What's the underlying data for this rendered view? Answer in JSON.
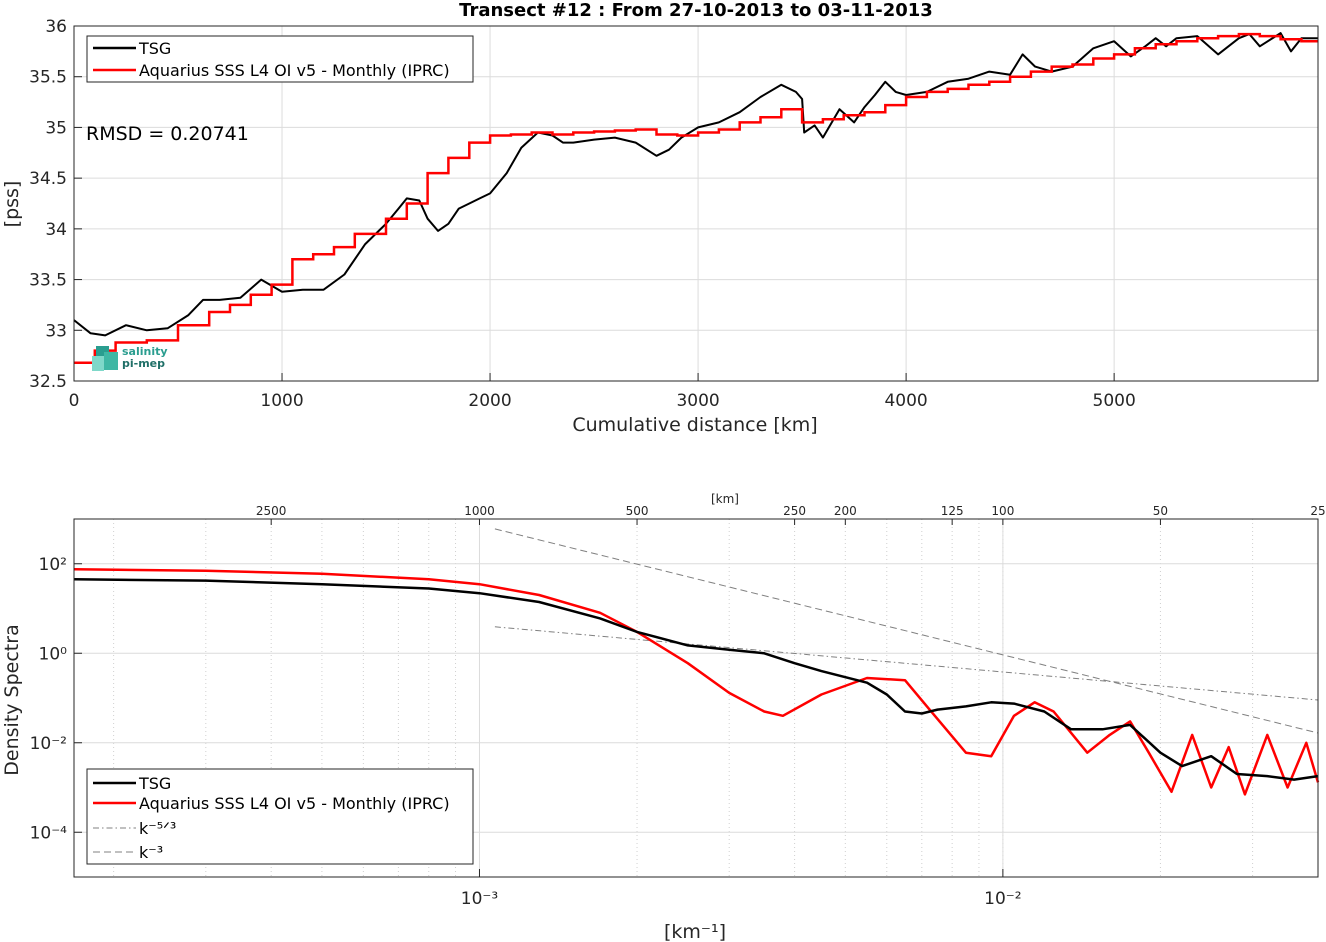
{
  "colors": {
    "tsg": "#000000",
    "aquarius": "#ff0000",
    "ref": "#808080",
    "grid": "#dcdcdc"
  },
  "logo": {
    "line1": "salinity",
    "line2": "pi-mep"
  },
  "chart_data": [
    {
      "type": "line",
      "title": "Transect #12 : From 27-10-2013 to 03-11-2013",
      "xlabel": "Cumulative distance [km]",
      "ylabel": "[pss]",
      "xlim": [
        0,
        5980
      ],
      "ylim": [
        32.5,
        36
      ],
      "xticks": [
        0,
        1000,
        2000,
        3000,
        4000,
        5000
      ],
      "xtick_labels": [
        "0",
        "1000",
        "2000",
        "3000",
        "4000",
        "5000"
      ],
      "yticks": [
        32.5,
        33,
        33.5,
        34,
        34.5,
        35,
        35.5,
        36
      ],
      "ytick_labels": [
        "32.5",
        "33",
        "33.5",
        "34",
        "34.5",
        "35",
        "35.5",
        "36"
      ],
      "grid": true,
      "legend": "top-left",
      "annotation": "RMSD = 0.20741",
      "series": [
        {
          "name": "TSG",
          "kind": "line",
          "x": [
            0,
            80,
            150,
            250,
            350,
            450,
            550,
            620,
            700,
            800,
            900,
            1000,
            1100,
            1200,
            1300,
            1400,
            1500,
            1560,
            1600,
            1660,
            1700,
            1750,
            1800,
            1850,
            1900,
            1950,
            2000,
            2080,
            2150,
            2230,
            2300,
            2350,
            2400,
            2500,
            2600,
            2700,
            2800,
            2860,
            2920,
            3000,
            3100,
            3200,
            3300,
            3400,
            3470,
            3500,
            3510,
            3560,
            3600,
            3680,
            3750,
            3800,
            3850,
            3900,
            3950,
            4000,
            4100,
            4200,
            4300,
            4400,
            4500,
            4560,
            4620,
            4700,
            4800,
            4900,
            5000,
            5080,
            5150,
            5200,
            5250,
            5300,
            5400,
            5500,
            5600,
            5650,
            5700,
            5800,
            5850,
            5900,
            5980
          ],
          "y": [
            33.1,
            32.97,
            32.95,
            33.05,
            33.0,
            33.02,
            33.15,
            33.3,
            33.3,
            33.32,
            33.5,
            33.38,
            33.4,
            33.4,
            33.55,
            33.85,
            34.05,
            34.2,
            34.3,
            34.28,
            34.1,
            33.98,
            34.05,
            34.2,
            34.25,
            34.3,
            34.35,
            34.55,
            34.8,
            34.95,
            34.92,
            34.85,
            34.85,
            34.88,
            34.9,
            34.85,
            34.72,
            34.78,
            34.9,
            35.0,
            35.05,
            35.15,
            35.3,
            35.42,
            35.35,
            35.28,
            34.95,
            35.02,
            34.9,
            35.18,
            35.05,
            35.2,
            35.32,
            35.45,
            35.35,
            35.32,
            35.35,
            35.45,
            35.48,
            35.55,
            35.52,
            35.72,
            35.6,
            35.55,
            35.6,
            35.78,
            35.85,
            35.7,
            35.8,
            35.88,
            35.8,
            35.88,
            35.9,
            35.72,
            35.88,
            35.92,
            35.8,
            35.93,
            35.75,
            35.88,
            35.88
          ]
        },
        {
          "name": "Aquarius SSS L4 OI v5 - Monthly (IPRC)",
          "kind": "step",
          "x": [
            0,
            100,
            200,
            350,
            500,
            650,
            750,
            850,
            950,
            1050,
            1150,
            1250,
            1350,
            1500,
            1600,
            1700,
            1800,
            1900,
            2000,
            2100,
            2200,
            2300,
            2400,
            2500,
            2600,
            2700,
            2800,
            2900,
            3000,
            3100,
            3200,
            3300,
            3400,
            3500,
            3600,
            3700,
            3800,
            3900,
            4000,
            4100,
            4200,
            4300,
            4400,
            4500,
            4600,
            4700,
            4800,
            4900,
            5000,
            5100,
            5200,
            5300,
            5400,
            5500,
            5600,
            5700,
            5800,
            5900,
            5980
          ],
          "y": [
            32.68,
            32.8,
            32.88,
            32.9,
            33.05,
            33.18,
            33.25,
            33.35,
            33.45,
            33.7,
            33.75,
            33.82,
            33.95,
            34.1,
            34.25,
            34.55,
            34.7,
            34.85,
            34.92,
            34.93,
            34.95,
            34.93,
            34.95,
            34.96,
            34.97,
            34.98,
            34.93,
            34.92,
            34.95,
            34.98,
            35.05,
            35.1,
            35.18,
            35.05,
            35.08,
            35.12,
            35.15,
            35.22,
            35.3,
            35.35,
            35.38,
            35.42,
            35.45,
            35.5,
            35.55,
            35.6,
            35.62,
            35.68,
            35.72,
            35.78,
            35.82,
            35.85,
            35.88,
            35.9,
            35.92,
            35.9,
            35.87,
            35.85,
            35.85
          ]
        }
      ]
    },
    {
      "type": "line",
      "xlabel": "[km⁻¹]",
      "ylabel": "Density Spectra",
      "top_axis_label": "[km]",
      "log_x": true,
      "log_y": true,
      "xlim": [
        0.000168,
        0.04
      ],
      "ylim": [
        1e-05,
        1000
      ],
      "xticks": [
        0.001,
        0.01
      ],
      "xtick_labels": [
        "10⁻³",
        "10⁻²"
      ],
      "yticks": [
        0.0001,
        0.01,
        1,
        100
      ],
      "ytick_labels": [
        "10⁻⁴",
        "10⁻²",
        "10⁰",
        "10²"
      ],
      "top_ticks_km": [
        2500,
        1000,
        500,
        250,
        200,
        125,
        100,
        50,
        25
      ],
      "top_tick_labels": [
        "2500",
        "1000",
        "500",
        "250",
        "200",
        "125",
        "100",
        "50",
        "25"
      ],
      "grid": true,
      "legend": "bottom-left",
      "series": [
        {
          "name": "TSG",
          "kind": "line",
          "x": [
            0.000168,
            0.0003,
            0.0005,
            0.0008,
            0.001,
            0.0013,
            0.0017,
            0.002,
            0.0025,
            0.003,
            0.0035,
            0.004,
            0.0045,
            0.0055,
            0.006,
            0.0065,
            0.007,
            0.0075,
            0.0085,
            0.0095,
            0.0105,
            0.012,
            0.0135,
            0.0155,
            0.0175,
            0.02,
            0.022,
            0.025,
            0.028,
            0.032,
            0.036,
            0.04
          ],
          "y": [
            45,
            42,
            35,
            28,
            22,
            14,
            6,
            3,
            1.5,
            1.2,
            1.0,
            0.6,
            0.4,
            0.22,
            0.12,
            0.05,
            0.045,
            0.055,
            0.065,
            0.08,
            0.075,
            0.05,
            0.02,
            0.02,
            0.025,
            0.006,
            0.003,
            0.005,
            0.002,
            0.0018,
            0.0015,
            0.0018
          ]
        },
        {
          "name": "Aquarius SSS L4 OI v5 - Monthly (IPRC)",
          "kind": "line",
          "x": [
            0.000168,
            0.0003,
            0.0005,
            0.0008,
            0.001,
            0.0013,
            0.0017,
            0.002,
            0.0025,
            0.003,
            0.0035,
            0.0038,
            0.0045,
            0.0055,
            0.0065,
            0.0072,
            0.0085,
            0.0095,
            0.0105,
            0.0115,
            0.0125,
            0.0145,
            0.016,
            0.0175,
            0.019,
            0.021,
            0.023,
            0.025,
            0.027,
            0.029,
            0.032,
            0.035,
            0.038,
            0.04
          ],
          "y": [
            75,
            70,
            60,
            45,
            35,
            20,
            8,
            3,
            0.6,
            0.13,
            0.05,
            0.04,
            0.12,
            0.28,
            0.25,
            0.06,
            0.006,
            0.005,
            0.04,
            0.08,
            0.05,
            0.006,
            0.015,
            0.03,
            0.006,
            0.0008,
            0.015,
            0.001,
            0.008,
            0.0007,
            0.015,
            0.001,
            0.01,
            0.0013
          ]
        },
        {
          "name": "k⁻⁵ᐟ³",
          "kind": "dashdot",
          "x": [
            0.00107,
            0.04
          ],
          "y": [
            3.9,
            0.09
          ]
        },
        {
          "name": "k⁻³",
          "kind": "dashed",
          "x": [
            0.00107,
            0.04
          ],
          "y": [
            600,
            0.0165
          ]
        }
      ]
    }
  ]
}
